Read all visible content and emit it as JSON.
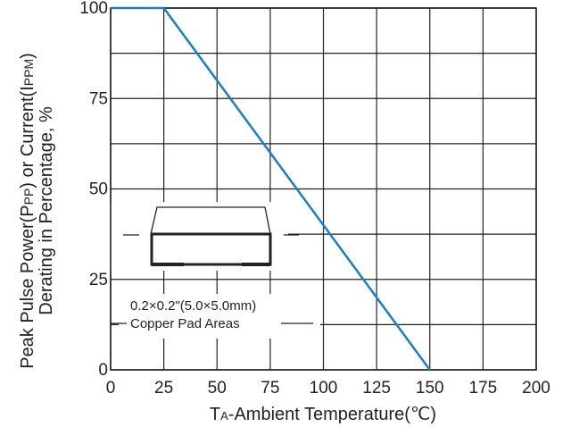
{
  "chart_data": {
    "type": "line",
    "xlabel": "TA-Ambient Temperature(℃)",
    "xlabel_parts": {
      "main": "T",
      "sub": "A",
      "rest": "-Ambient Temperature(℃)"
    },
    "ylabel": {
      "line1": "Peak Pulse Power(PPP) or Current(IPPM)",
      "line1_parts": [
        {
          "text": "Peak Pulse Power(P",
          "small": false
        },
        {
          "text": "PP",
          "small": true
        },
        {
          "text": ") or Current(I",
          "small": false
        },
        {
          "text": "PPM",
          "small": true
        },
        {
          "text": ")",
          "small": false
        }
      ],
      "line2": "Derating in Percentage, %"
    },
    "x_ticks": [
      "0",
      "25",
      "50",
      "75",
      "100",
      "125",
      "150",
      "175",
      "200"
    ],
    "y_ticks": [
      "0",
      "25",
      "50",
      "75",
      "100"
    ],
    "xlim": [
      0,
      200
    ],
    "ylim": [
      0,
      100
    ],
    "grid": true,
    "series": [
      {
        "color": "#1a7fc4",
        "x": [
          0,
          25,
          150
        ],
        "y": [
          100,
          100,
          0
        ]
      }
    ],
    "annotations": {
      "line1": "0.2×0.2\"(5.0×5.0mm)",
      "line2": "Copper Pad Areas"
    }
  }
}
